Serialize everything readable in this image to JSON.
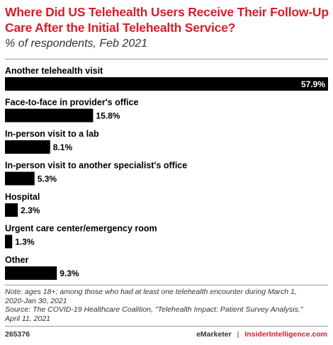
{
  "header": {
    "title": "Where Did US Telehealth Users Receive Their Follow-Up Care After the Initial Telehealth Service?",
    "subtitle": "% of respondents, Feb 2021"
  },
  "chart_data": {
    "type": "bar",
    "orientation": "horizontal",
    "categories": [
      "Another telehealth visit",
      "Face-to-face in provider's office",
      "In-person visit to a lab",
      "In-person visit to another specialist's office",
      "Hospital",
      "Urgent care center/emergency room",
      "Other"
    ],
    "values": [
      57.9,
      15.8,
      8.1,
      5.3,
      2.3,
      1.3,
      9.3
    ],
    "value_labels": [
      "57.9%",
      "15.8%",
      "8.1%",
      "5.3%",
      "2.3%",
      "1.3%",
      "9.3%"
    ],
    "xlim": [
      0,
      57.9
    ],
    "bar_color": "#000000",
    "grid": false,
    "legend": "none"
  },
  "notes": {
    "note_line1": "Note: ages 18+; among those who had at least one telehealth encounter during March 1,",
    "note_line2": "2020-Jan 30, 2021",
    "source_line1": "Source: The COVID-19 Healthcare Coalition, \"Telehealth Impact: Patient Survey Analysis,\"",
    "source_line2": "April 11, 2021"
  },
  "footer": {
    "chart_id": "265376",
    "brand": "eMarketer",
    "separator": "|",
    "site": "InsiderIntelligence.com"
  },
  "colors": {
    "title": "#d71e28",
    "bars": "#000000",
    "site_link": "#d71e28"
  }
}
